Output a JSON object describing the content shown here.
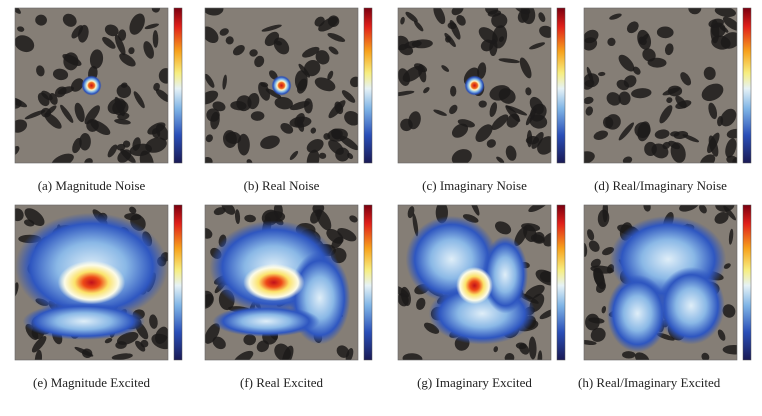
{
  "figure": {
    "panels": [
      {
        "caption": "(a) Magnitude Noise"
      },
      {
        "caption": "(b) Real Noise"
      },
      {
        "caption": "(c) Imaginary Noise"
      },
      {
        "caption": "(d) Real/Imaginary Noise"
      },
      {
        "caption": "(e) Magnitude Excited"
      },
      {
        "caption": "(f) Real Excited"
      },
      {
        "caption": "(g) Imaginary Excited"
      },
      {
        "caption": "(h) Real/Imaginary Excited"
      }
    ]
  }
}
